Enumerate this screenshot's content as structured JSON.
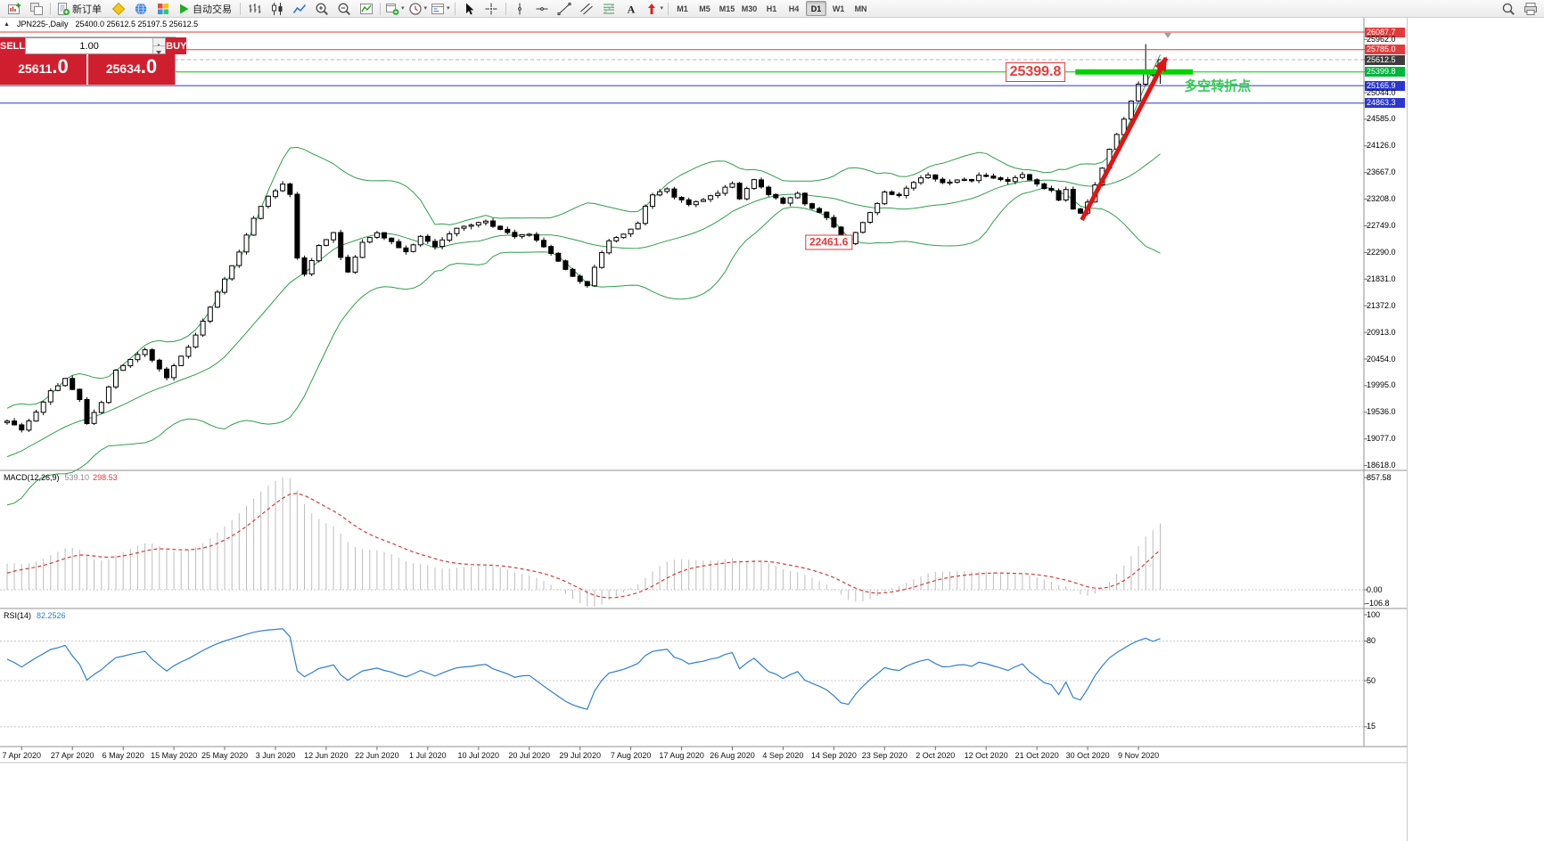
{
  "toolbar": {
    "buttons": [
      {
        "type": "icon",
        "name": "new-chart-icon",
        "icon": "newchart"
      },
      {
        "type": "icon",
        "name": "profiles-icon",
        "icon": "profiles"
      },
      {
        "type": "sep"
      },
      {
        "type": "text-button",
        "name": "new-order-button",
        "icon": "neworder",
        "label": "新订单"
      },
      {
        "type": "icon",
        "name": "metaeditor-icon",
        "icon": "editor"
      },
      {
        "type": "icon",
        "name": "community-icon",
        "icon": "globe"
      },
      {
        "type": "icon",
        "name": "market-icon",
        "icon": "market"
      },
      {
        "type": "text-button",
        "name": "auto-trading-button",
        "icon": "play",
        "label": "自动交易"
      },
      {
        "type": "sep"
      },
      {
        "type": "icon",
        "name": "bar-chart-icon",
        "icon": "bars"
      },
      {
        "type": "icon",
        "name": "candlestick-chart-icon",
        "icon": "candles"
      },
      {
        "type": "icon",
        "name": "line-chart-icon",
        "icon": "linechart"
      },
      {
        "type": "icon",
        "name": "zoom-in-icon",
        "icon": "zoomin"
      },
      {
        "type": "icon",
        "name": "zoom-out-icon",
        "icon": "zoomout"
      },
      {
        "type": "icon",
        "name": "indicators-icon",
        "icon": "indicators"
      },
      {
        "type": "sep"
      },
      {
        "type": "combo",
        "name": "add-indicator-combo",
        "icon": "addwin"
      },
      {
        "type": "combo",
        "name": "period-combo",
        "icon": "clock"
      },
      {
        "type": "combo",
        "name": "template-combo",
        "icon": "template"
      },
      {
        "type": "sep"
      },
      {
        "type": "icon",
        "name": "cursor-icon",
        "icon": "cursor"
      },
      {
        "type": "icon",
        "name": "crosshair-icon",
        "icon": "crosshair"
      },
      {
        "type": "sep"
      },
      {
        "type": "icon",
        "name": "vertical-line-icon",
        "icon": "vline"
      },
      {
        "type": "icon",
        "name": "horizontal-line-icon",
        "icon": "hline"
      },
      {
        "type": "icon",
        "name": "trendline-icon",
        "icon": "trend"
      },
      {
        "type": "icon",
        "name": "channel-icon",
        "icon": "channel"
      },
      {
        "type": "icon",
        "name": "fibonacci-icon",
        "icon": "fibo"
      },
      {
        "type": "icon",
        "name": "text-icon",
        "icon": "text"
      },
      {
        "type": "combo",
        "name": "arrows-icon",
        "icon": "arrows"
      },
      {
        "type": "sep"
      }
    ],
    "timeframes": [
      "M1",
      "M5",
      "M15",
      "M30",
      "H1",
      "H4",
      "D1",
      "W1",
      "MN"
    ],
    "active_timeframe": "D1",
    "right_icons": [
      {
        "name": "search-icon",
        "icon": "search"
      },
      {
        "name": "print-icon",
        "icon": "print"
      }
    ]
  },
  "chart_header": {
    "collapse_marker": "▲",
    "symbol_period": "JPN225-,Daily",
    "ohlc_line": "25400.0 25612.5 25197.5 25612.5"
  },
  "trade_panel": {
    "sell_label": "SELL",
    "buy_label": "BUY",
    "volume": "1.00",
    "sell_price_main": "25611",
    "sell_price_pips": ".0",
    "buy_price_main": "25634",
    "buy_price_pips": ".0"
  },
  "chart_data": {
    "type": "candlestick",
    "symbol": "JPN225-",
    "period": "Daily",
    "bars_visible": 160,
    "last_ohlc": {
      "open": 25400.0,
      "high": 25612.5,
      "low": 25197.5,
      "close": 25612.5
    },
    "x_axis_labels": [
      {
        "bar": 2,
        "text": "7 Apr 2020"
      },
      {
        "bar": 9,
        "text": "27 Apr 2020"
      },
      {
        "bar": 16,
        "text": "6 May 2020"
      },
      {
        "bar": 23,
        "text": "15 May 2020"
      },
      {
        "bar": 30,
        "text": "25 May 2020"
      },
      {
        "bar": 37,
        "text": "3 Jun 2020"
      },
      {
        "bar": 44,
        "text": "12 Jun 2020"
      },
      {
        "bar": 51,
        "text": "22 Jun 2020"
      },
      {
        "bar": 58,
        "text": "1 Jul 2020"
      },
      {
        "bar": 65,
        "text": "10 Jul 2020"
      },
      {
        "bar": 72,
        "text": "20 Jul 2020"
      },
      {
        "bar": 79,
        "text": "29 Jul 2020"
      },
      {
        "bar": 86,
        "text": "7 Aug 2020"
      },
      {
        "bar": 93,
        "text": "17 Aug 2020"
      },
      {
        "bar": 100,
        "text": "26 Aug 2020"
      },
      {
        "bar": 107,
        "text": "4 Sep 2020"
      },
      {
        "bar": 114,
        "text": "14 Sep 2020"
      },
      {
        "bar": 121,
        "text": "23 Sep 2020"
      },
      {
        "bar": 128,
        "text": "2 Oct 2020"
      },
      {
        "bar": 135,
        "text": "12 Oct 2020"
      },
      {
        "bar": 142,
        "text": "21 Oct 2020"
      },
      {
        "bar": 149,
        "text": "30 Oct 2020"
      },
      {
        "bar": 156,
        "text": "9 Nov 2020"
      }
    ],
    "price_axis": {
      "special_labels": [
        {
          "value": 26087.7,
          "text": "26087.7",
          "bg": "#e23b3b",
          "fg": "#ffffff",
          "line": "red"
        },
        {
          "value": 25962.0,
          "text": "25962.0",
          "bg": null,
          "fg": "#000000"
        },
        {
          "value": 25785.0,
          "text": "25785.0",
          "bg": "#e23b3b",
          "fg": "#ffffff",
          "line": "red"
        },
        {
          "value": 25612.5,
          "text": "25612.5",
          "bg": "#3d3d3d",
          "fg": "#ffffff",
          "line": "bid"
        },
        {
          "value": 25399.8,
          "text": "25399.8",
          "bg": "#00b43c",
          "fg": "#ffffff",
          "line": "green"
        },
        {
          "value": 25165.9,
          "text": "25165.9",
          "bg": "#2b35cf",
          "fg": "#ffffff",
          "line": "blue"
        },
        {
          "value": 25044.0,
          "text": "25044.0",
          "bg": null,
          "fg": "#000000"
        },
        {
          "value": 24863.3,
          "text": "24863.3",
          "bg": "#2b35cf",
          "fg": "#ffffff",
          "line": "blue"
        }
      ],
      "grid_labels": [
        "24585.0",
        "24126.0",
        "23667.0",
        "23208.0",
        "22749.0",
        "22290.0",
        "21831.0",
        "21372.0",
        "20913.0",
        "20454.0",
        "19995.0",
        "19536.0",
        "19077.0",
        "18618.0"
      ]
    },
    "green_segment": {
      "price": 25399.8,
      "from_bar": 147.3,
      "to_bar": 163.5,
      "thickness": 6,
      "color": "#00d400"
    },
    "annotations": [
      {
        "type": "callout",
        "name": "price-callout-25399",
        "text": "25399.8",
        "bar": 141.8,
        "price": 25399.8,
        "color": "#e23b3b",
        "font_size": 16
      },
      {
        "type": "callout",
        "name": "price-callout-22461",
        "text": "22461.6",
        "bar": 113.3,
        "price": 22461.6,
        "color": "#e23b3b",
        "font_size": 12
      },
      {
        "type": "label",
        "name": "turning-point-label",
        "text": "多空转折点",
        "bar": 162.3,
        "price": 25160,
        "color": "#33cc55",
        "font_size": 15
      },
      {
        "type": "arrow",
        "name": "trend-arrow",
        "from_bar": 148.2,
        "from_price": 22850,
        "to_bar": 159.8,
        "to_price": 25640,
        "color": "#e01414",
        "width": 5
      }
    ],
    "overlays": {
      "bollinger_period": 20,
      "bollinger_deviation": 2,
      "band_color": "#2f9e4f"
    },
    "warmup_anchors": [
      [
        -20,
        18600
      ],
      [
        -17,
        17950
      ],
      [
        -14,
        18500
      ],
      [
        -11,
        18900
      ],
      [
        -8,
        18650
      ],
      [
        -5,
        19150
      ],
      [
        -2,
        19300
      ]
    ],
    "price_path_anchors": [
      [
        0,
        19400
      ],
      [
        2,
        19250
      ],
      [
        4,
        19550
      ],
      [
        6,
        19900
      ],
      [
        8,
        20100
      ],
      [
        10,
        19750
      ],
      [
        11,
        19350
      ],
      [
        13,
        19700
      ],
      [
        15,
        20250
      ],
      [
        17,
        20450
      ],
      [
        19,
        20600
      ],
      [
        21,
        20300
      ],
      [
        22,
        20150
      ],
      [
        24,
        20500
      ],
      [
        26,
        20850
      ],
      [
        28,
        21350
      ],
      [
        30,
        21850
      ],
      [
        32,
        22300
      ],
      [
        34,
        22900
      ],
      [
        36,
        23250
      ],
      [
        38,
        23480
      ],
      [
        39,
        23300
      ],
      [
        40,
        22200
      ],
      [
        41,
        21900
      ],
      [
        43,
        22400
      ],
      [
        45,
        22620
      ],
      [
        46,
        22200
      ],
      [
        47,
        21950
      ],
      [
        49,
        22450
      ],
      [
        51,
        22620
      ],
      [
        53,
        22480
      ],
      [
        55,
        22300
      ],
      [
        57,
        22560
      ],
      [
        59,
        22400
      ],
      [
        61,
        22620
      ],
      [
        63,
        22760
      ],
      [
        66,
        22820
      ],
      [
        68,
        22680
      ],
      [
        70,
        22560
      ],
      [
        72,
        22620
      ],
      [
        74,
        22380
      ],
      [
        76,
        22150
      ],
      [
        78,
        21880
      ],
      [
        80,
        21720
      ],
      [
        81,
        22050
      ],
      [
        83,
        22500
      ],
      [
        85,
        22620
      ],
      [
        87,
        22780
      ],
      [
        88,
        23100
      ],
      [
        89,
        23300
      ],
      [
        91,
        23380
      ],
      [
        92,
        23250
      ],
      [
        94,
        23120
      ],
      [
        96,
        23220
      ],
      [
        98,
        23320
      ],
      [
        100,
        23470
      ],
      [
        101,
        23220
      ],
      [
        103,
        23560
      ],
      [
        105,
        23280
      ],
      [
        107,
        23150
      ],
      [
        109,
        23320
      ],
      [
        110,
        23120
      ],
      [
        112,
        23000
      ],
      [
        114,
        22750
      ],
      [
        115,
        22500
      ],
      [
        116,
        22460
      ],
      [
        118,
        22800
      ],
      [
        120,
        23120
      ],
      [
        121,
        23350
      ],
      [
        123,
        23270
      ],
      [
        125,
        23500
      ],
      [
        127,
        23620
      ],
      [
        129,
        23480
      ],
      [
        131,
        23560
      ],
      [
        133,
        23520
      ],
      [
        134,
        23640
      ],
      [
        136,
        23560
      ],
      [
        138,
        23500
      ],
      [
        140,
        23620
      ],
      [
        142,
        23460
      ],
      [
        144,
        23350
      ],
      [
        145,
        23200
      ],
      [
        146,
        23370
      ],
      [
        147,
        23050
      ],
      [
        148,
        22980
      ],
      [
        149,
        23150
      ],
      [
        150,
        23450
      ],
      [
        151,
        23750
      ],
      [
        152,
        24050
      ],
      [
        153,
        24320
      ],
      [
        154,
        24580
      ],
      [
        155,
        24900
      ],
      [
        156,
        25180
      ],
      [
        157,
        25420
      ],
      [
        158,
        25330
      ],
      [
        159,
        25612.5
      ]
    ],
    "high_overrides": [
      [
        157,
        25880
      ]
    ],
    "indicators": {
      "macd": {
        "label": "MACD(12,26,9)",
        "value_main": "539.10",
        "value_signal": "298.53",
        "scale_labels": [
          "857.58",
          "0.00",
          "-106.8"
        ],
        "scale_values": [
          857.58,
          0,
          -106.8
        ],
        "histogram_color": "#bdbdbd",
        "signal_color": "#d23b3b"
      },
      "rsi": {
        "label": "RSI(14)",
        "value": "82.2526",
        "scale_labels": [
          "100",
          "80",
          "50",
          "15"
        ],
        "scale_values": [
          100,
          80,
          50,
          15
        ],
        "levels": [
          80,
          50,
          15
        ],
        "line_color": "#2f80d0"
      }
    }
  }
}
